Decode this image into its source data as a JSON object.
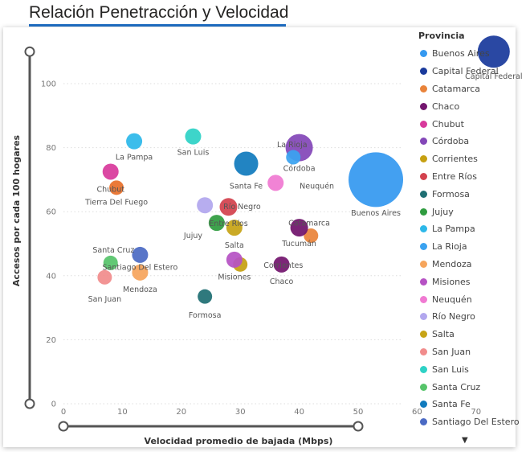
{
  "chart_data": {
    "type": "scatter",
    "title": "Relación Penetracción y Velocidad",
    "xlabel": "Velocidad promedio de bajada (Mbps)",
    "ylabel": "Accesos por cada 100 hogares",
    "xlim": [
      0,
      75
    ],
    "ylim": [
      0,
      110
    ],
    "xticks": [
      "0",
      "10",
      "20",
      "30",
      "40",
      "50",
      "60",
      "70"
    ],
    "yticks": [
      "0",
      "20",
      "40",
      "60",
      "80",
      "100"
    ],
    "legend_title": "Provincia",
    "points": [
      {
        "name": "Buenos Aires",
        "x": 53,
        "y": 70,
        "size": 34,
        "color": "#3599f0"
      },
      {
        "name": "Capital Federal",
        "x": 73,
        "y": 110,
        "size": 20,
        "color": "#1a3a9c"
      },
      {
        "name": "Catamarca",
        "x": 42,
        "y": 52.5,
        "size": 9,
        "color": "#e9833a"
      },
      {
        "name": "Chaco",
        "x": 37,
        "y": 43.5,
        "size": 10,
        "color": "#73166e"
      },
      {
        "name": "Chubut",
        "x": 8,
        "y": 72.5,
        "size": 10,
        "color": "#d83a9c"
      },
      {
        "name": "Córdoba",
        "x": 40,
        "y": 80,
        "size": 17,
        "color": "#8347b8"
      },
      {
        "name": "Corrientes",
        "x": 30,
        "y": 43.5,
        "size": 9,
        "color": "#c6a011"
      },
      {
        "name": "Entre Ríos",
        "x": 28,
        "y": 61.5,
        "size": 11,
        "color": "#d3424e"
      },
      {
        "name": "Formosa",
        "x": 24,
        "y": 33.5,
        "size": 9,
        "color": "#1f6f73"
      },
      {
        "name": "Jujuy",
        "x": 26,
        "y": 56.5,
        "size": 10,
        "color": "#2f9c3f"
      },
      {
        "name": "La Pampa",
        "x": 12,
        "y": 82,
        "size": 10,
        "color": "#2db8e9"
      },
      {
        "name": "La Rioja",
        "x": 39,
        "y": 77,
        "size": 9,
        "color": "#3aa2f0"
      },
      {
        "name": "Mendoza",
        "x": 13,
        "y": 41,
        "size": 10,
        "color": "#f6a55c"
      },
      {
        "name": "Misiones",
        "x": 29,
        "y": 45,
        "size": 10,
        "color": "#b652c4"
      },
      {
        "name": "Neuquén",
        "x": 36,
        "y": 69,
        "size": 10,
        "color": "#f07ad2"
      },
      {
        "name": "Río Negro",
        "x": 24,
        "y": 62,
        "size": 10,
        "color": "#b2a7ee"
      },
      {
        "name": "Salta",
        "x": 29,
        "y": 55,
        "size": 10,
        "color": "#c7a416"
      },
      {
        "name": "San Juan",
        "x": 7,
        "y": 39.5,
        "size": 9,
        "color": "#f18c8c"
      },
      {
        "name": "San Luis",
        "x": 22,
        "y": 83.5,
        "size": 10,
        "color": "#2ed2c6"
      },
      {
        "name": "Santa Cruz",
        "x": 8,
        "y": 44,
        "size": 9,
        "color": "#56c46a"
      },
      {
        "name": "Santa Fe",
        "x": 31,
        "y": 75,
        "size": 15,
        "color": "#117bbd"
      },
      {
        "name": "Santiago Del Estero",
        "x": 13,
        "y": 46.5,
        "size": 10,
        "color": "#4b6ac4"
      },
      {
        "name": "Tierra Del Fuego",
        "x": 9,
        "y": 67.5,
        "size": 9,
        "color": "#e8702a"
      },
      {
        "name": "Tucumán",
        "x": 40,
        "y": 55,
        "size": 11,
        "color": "#70136c"
      }
    ],
    "labels": [
      {
        "text": "Capital Federal",
        "x": 73,
        "y": 101.5,
        "anchor": "middle"
      },
      {
        "text": "Buenos Aires",
        "x": 53,
        "y": 58.8,
        "anchor": "middle"
      },
      {
        "text": "La Rioja",
        "x": 38.8,
        "y": 80.2,
        "anchor": "middle"
      },
      {
        "text": "Córdoba",
        "x": 40,
        "y": 72.8,
        "anchor": "middle"
      },
      {
        "text": "Neuquén",
        "x": 43,
        "y": 67.2,
        "anchor": "middle"
      },
      {
        "text": "Santa Fe",
        "x": 31,
        "y": 67.2,
        "anchor": "middle"
      },
      {
        "text": "La Pampa",
        "x": 12,
        "y": 76.2,
        "anchor": "middle"
      },
      {
        "text": "San Luis",
        "x": 22,
        "y": 77.8,
        "anchor": "middle"
      },
      {
        "text": "Chubut",
        "x": 8,
        "y": 66.2,
        "anchor": "middle"
      },
      {
        "text": "Tierra Del Fuego",
        "x": 9,
        "y": 62.2,
        "anchor": "middle"
      },
      {
        "text": "Río Negro",
        "x": 30.3,
        "y": 60.8,
        "anchor": "middle"
      },
      {
        "text": "Entre Ríos",
        "x": 28,
        "y": 55.5,
        "anchor": "middle"
      },
      {
        "text": "Jujuy",
        "x": 22,
        "y": 51.8,
        "anchor": "middle"
      },
      {
        "text": "Salta",
        "x": 29,
        "y": 48.8,
        "anchor": "middle"
      },
      {
        "text": "Catamarca",
        "x": 41.7,
        "y": 55.6,
        "anchor": "middle"
      },
      {
        "text": "Tucumán",
        "x": 40,
        "y": 49.2,
        "anchor": "middle"
      },
      {
        "text": "Corrientes",
        "x": 37.3,
        "y": 42.5,
        "anchor": "middle"
      },
      {
        "text": "Misiones",
        "x": 29,
        "y": 38.8,
        "anchor": "middle"
      },
      {
        "text": "Chaco",
        "x": 37,
        "y": 37.4,
        "anchor": "middle"
      },
      {
        "text": "Santa Cruz",
        "x": 8.5,
        "y": 47.2,
        "anchor": "middle"
      },
      {
        "text": "Santiago Del Estero",
        "x": 13,
        "y": 41.8,
        "anchor": "middle"
      },
      {
        "text": "Mendoza",
        "x": 13,
        "y": 34.9,
        "anchor": "middle"
      },
      {
        "text": "San Juan",
        "x": 7,
        "y": 31.9,
        "anchor": "middle"
      },
      {
        "text": "Formosa",
        "x": 24,
        "y": 26.9,
        "anchor": "middle"
      }
    ],
    "legend": [
      {
        "name": "Buenos Aires",
        "color": "#3599f0"
      },
      {
        "name": "Capital Federal",
        "color": "#1a3a9c"
      },
      {
        "name": "Catamarca",
        "color": "#e9833a"
      },
      {
        "name": "Chaco",
        "color": "#73166e"
      },
      {
        "name": "Chubut",
        "color": "#d83a9c"
      },
      {
        "name": "Córdoba",
        "color": "#8347b8"
      },
      {
        "name": "Corrientes",
        "color": "#c6a011"
      },
      {
        "name": "Entre Ríos",
        "color": "#d3424e"
      },
      {
        "name": "Formosa",
        "color": "#1f6f73"
      },
      {
        "name": "Jujuy",
        "color": "#2f9c3f"
      },
      {
        "name": "La Pampa",
        "color": "#2db8e9"
      },
      {
        "name": "La Rioja",
        "color": "#3aa2f0"
      },
      {
        "name": "Mendoza",
        "color": "#f6a55c"
      },
      {
        "name": "Misiones",
        "color": "#b652c4"
      },
      {
        "name": "Neuquén",
        "color": "#f07ad2"
      },
      {
        "name": "Río Negro",
        "color": "#b2a7ee"
      },
      {
        "name": "Salta",
        "color": "#c7a416"
      },
      {
        "name": "San Juan",
        "color": "#f18c8c"
      },
      {
        "name": "San Luis",
        "color": "#2ed2c6"
      },
      {
        "name": "Santa Cruz",
        "color": "#56c46a"
      },
      {
        "name": "Santa Fe",
        "color": "#117bbd"
      },
      {
        "name": "Santiago Del Estero",
        "color": "#4b6ac4"
      }
    ],
    "x_range_slider": [
      0,
      50
    ],
    "y_range_slider": [
      0,
      110
    ]
  },
  "more_icon": "chevron-down-icon",
  "more_glyph": "▼"
}
